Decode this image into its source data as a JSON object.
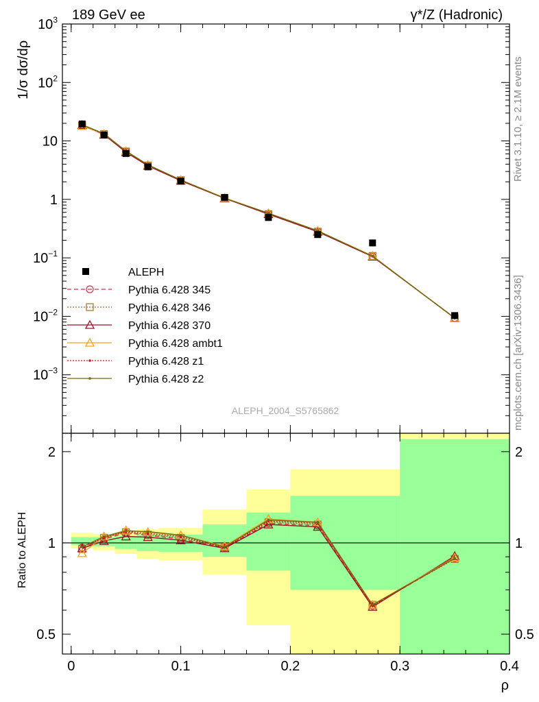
{
  "header": {
    "left_title": "189 GeV ee",
    "right_title": "γ*/Z (Hadronic)"
  },
  "side_labels": {
    "rivet": "Rivet 3.1.10, ≥ 2.1M events",
    "mcplots": "mcplots.cern.ch [arXiv:1306.3436]"
  },
  "analysis_ref": "ALEPH_2004_S5765862",
  "chart_data": [
    {
      "type": "scatter",
      "role": "main",
      "ylabel": "1/σ dσ/dρ",
      "yscale": "log",
      "ylim": [
        0.0001,
        1000
      ],
      "xlim": [
        -0.008,
        0.4
      ],
      "y_tick_labels": [
        {
          "value": 1000,
          "base": "10",
          "exp": "3"
        },
        {
          "value": 100,
          "base": "10",
          "exp": "2"
        },
        {
          "value": 10,
          "base": "10",
          "exp": ""
        },
        {
          "value": 1,
          "base": "1",
          "exp": ""
        },
        {
          "value": 0.1,
          "base": "10",
          "exp": "−1"
        },
        {
          "value": 0.01,
          "base": "10",
          "exp": "−2"
        },
        {
          "value": 0.001,
          "base": "10",
          "exp": "−3"
        }
      ],
      "data": {
        "name": "ALEPH",
        "x": [
          0.01,
          0.03,
          0.05,
          0.07,
          0.1,
          0.14,
          0.18,
          0.225,
          0.275,
          0.35
        ],
        "y": [
          19.5,
          12.6,
          6.1,
          3.6,
          2.05,
          1.08,
          0.49,
          0.25,
          0.18,
          0.0103
        ]
      },
      "series": [
        {
          "name": "Pythia 6.428 345",
          "color": "#cc3344",
          "marker": "open-circle",
          "line": "dashed",
          "y": [
            18.8,
            13.0,
            6.6,
            3.8,
            2.12,
            1.05,
            0.56,
            0.28,
            0.106,
            0.0094
          ]
        },
        {
          "name": "Pythia 6.428 346",
          "color": "#a07030",
          "marker": "open-square",
          "line": "dotted",
          "y": [
            18.6,
            13.1,
            6.6,
            3.8,
            2.13,
            1.05,
            0.56,
            0.28,
            0.108,
            0.0093
          ]
        },
        {
          "name": "Pythia 6.428 370",
          "color": "#991122",
          "marker": "open-triangle",
          "line": "solid",
          "y": [
            18.7,
            12.8,
            6.4,
            3.75,
            2.09,
            1.04,
            0.56,
            0.28,
            0.105,
            0.0094
          ]
        },
        {
          "name": "Pythia 6.428 ambt1",
          "color": "#f0a020",
          "marker": "open-triangle",
          "line": "solid",
          "y": [
            18.0,
            13.2,
            6.7,
            3.9,
            2.15,
            1.06,
            0.58,
            0.29,
            0.108,
            0.0093
          ]
        },
        {
          "name": "Pythia 6.428 z1",
          "color": "#dd1111",
          "marker": "dot",
          "line": "dotted",
          "y": [
            18.9,
            13.1,
            6.7,
            3.9,
            2.14,
            1.04,
            0.58,
            0.29,
            0.106,
            0.0093
          ]
        },
        {
          "name": "Pythia 6.428 z2",
          "color": "#6b6b10",
          "marker": "dot",
          "line": "solid",
          "y": [
            18.9,
            13.3,
            6.7,
            3.9,
            2.15,
            1.05,
            0.58,
            0.29,
            0.107,
            0.0093
          ]
        }
      ]
    },
    {
      "type": "line",
      "role": "ratio",
      "ylabel": "Ratio to ALEPH",
      "xlabel": "ρ",
      "yscale": "log",
      "ylim": [
        0.43,
        2.3
      ],
      "xlim": [
        -0.008,
        0.4
      ],
      "y_ticks": [
        0.5,
        1,
        2
      ],
      "y_tick_labels": [
        "0.5",
        "1",
        "2"
      ],
      "x_ticks": [
        0,
        0.1,
        0.2,
        0.3,
        0.4
      ],
      "x_tick_labels": [
        "0",
        "0.1",
        "0.2",
        "0.3",
        "0.4"
      ],
      "reference_line": 1,
      "bands": [
        {
          "x0": 0.0,
          "x1": 0.02,
          "green": [
            0.985,
            1.045
          ],
          "yellow": [
            0.96,
            1.08
          ]
        },
        {
          "x0": 0.02,
          "x1": 0.04,
          "green": [
            0.975,
            1.045
          ],
          "yellow": [
            0.945,
            1.07
          ]
        },
        {
          "x0": 0.04,
          "x1": 0.06,
          "green": [
            0.955,
            1.055
          ],
          "yellow": [
            0.92,
            1.08
          ]
        },
        {
          "x0": 0.06,
          "x1": 0.08,
          "green": [
            0.94,
            1.065
          ],
          "yellow": [
            0.885,
            1.11
          ]
        },
        {
          "x0": 0.08,
          "x1": 0.12,
          "green": [
            0.935,
            1.065
          ],
          "yellow": [
            0.875,
            1.12
          ]
        },
        {
          "x0": 0.12,
          "x1": 0.16,
          "green": [
            0.9,
            1.15
          ],
          "yellow": [
            0.785,
            1.29
          ]
        },
        {
          "x0": 0.16,
          "x1": 0.2,
          "green": [
            0.81,
            1.26
          ],
          "yellow": [
            0.535,
            1.5
          ]
        },
        {
          "x0": 0.2,
          "x1": 0.3,
          "green": [
            0.7,
            1.43
          ],
          "yellow": [
            0.3,
            1.75
          ]
        },
        {
          "x0": 0.3,
          "x1": 0.4,
          "green": [
            0.3,
            2.2
          ],
          "yellow": [
            0.3,
            2.5
          ]
        }
      ],
      "series": [
        {
          "name": "Pythia 6.428 345",
          "y": [
            0.965,
            1.03,
            1.08,
            1.06,
            1.03,
            0.965,
            1.16,
            1.14,
            0.62,
            0.89
          ]
        },
        {
          "name": "Pythia 6.428 346",
          "y": [
            0.955,
            1.04,
            1.085,
            1.065,
            1.04,
            0.97,
            1.17,
            1.15,
            0.625,
            0.885
          ]
        },
        {
          "name": "Pythia 6.428 370",
          "y": [
            0.96,
            1.015,
            1.05,
            1.045,
            1.02,
            0.96,
            1.15,
            1.13,
            0.615,
            0.905
          ]
        },
        {
          "name": "Pythia 6.428 ambt1",
          "y": [
            0.925,
            1.05,
            1.1,
            1.085,
            1.06,
            0.975,
            1.2,
            1.17,
            0.625,
            0.895
          ]
        },
        {
          "name": "Pythia 6.428 z1",
          "y": [
            0.97,
            1.04,
            1.09,
            1.075,
            1.05,
            0.965,
            1.18,
            1.16,
            0.62,
            0.89
          ]
        },
        {
          "name": "Pythia 6.428 z2",
          "y": [
            0.97,
            1.05,
            1.095,
            1.09,
            1.06,
            0.97,
            1.19,
            1.17,
            0.625,
            0.89
          ]
        }
      ]
    }
  ]
}
